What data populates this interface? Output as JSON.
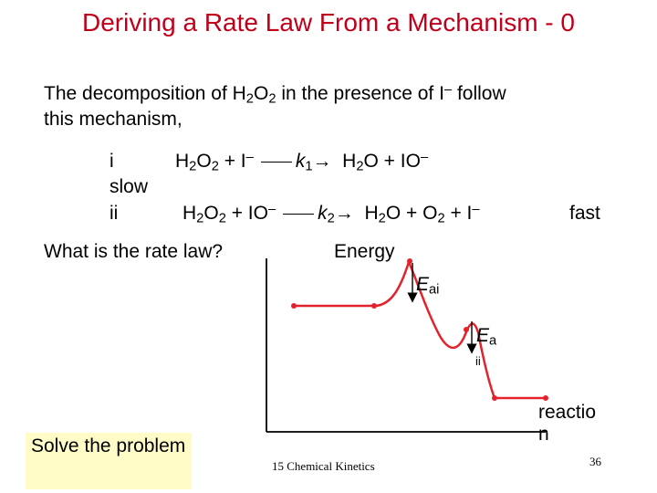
{
  "title": "Deriving a Rate Law From a Mechanism - 0",
  "intro": {
    "part1": "The decomposition of H",
    "sub1": "2",
    "part2": "O",
    "sub2": "2",
    "part3": " in the presence of I",
    "sup1": "–",
    "part4": " follow",
    "line2": "this mechanism,"
  },
  "mechanism": {
    "step1": {
      "label": "i",
      "reactants": [
        "H",
        "2",
        "O",
        "2",
        " + I",
        "–"
      ],
      "k": "k",
      "k_sub": "1",
      "products": [
        "H",
        "2",
        "O + IO",
        "–"
      ],
      "rate": "slow"
    },
    "step2": {
      "label": "ii",
      "reactants": [
        "H",
        "2",
        "O",
        "2",
        " + IO",
        "–"
      ],
      "k": "k",
      "k_sub": "2",
      "products": [
        "H",
        "2",
        "O + O",
        "2",
        " + I",
        "–"
      ],
      "rate": "fast"
    },
    "arrow_glyph": "→"
  },
  "question": "What is the rate law?",
  "energy_diagram": {
    "ylabel": "Energy",
    "xlabel": "reactio n",
    "ea_i": {
      "symbol": "E",
      "sub": "ai"
    },
    "ea_ii": {
      "symbol": "E",
      "sub": "a",
      "under": "ii"
    },
    "colors": {
      "curve": "#e3222b",
      "axis": "#000000",
      "arrow": "#000000"
    }
  },
  "solve_button": "Solve the problem",
  "footer": "15 Chemical Kinetics",
  "slide_number": "36"
}
